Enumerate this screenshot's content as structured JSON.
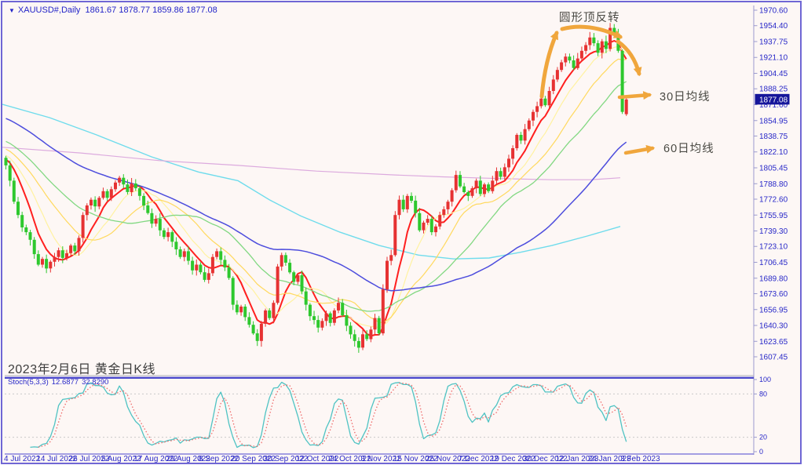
{
  "window": {
    "dropdown_icon": "▼",
    "title": "XAUUSD#,Daily",
    "title_ohlc": "1861.67 1878.77 1859.86 1877.08"
  },
  "main_chart": {
    "date_note": "2023年2月6日 黄金日K线",
    "annotations": {
      "rounded_top_label": "圆形顶反转",
      "ma30_label": "30日均线",
      "ma60_label": "60日均线",
      "arrow_color": "#f0a63c"
    },
    "current_price": "1877.08",
    "current_price_bg": "#15159a",
    "axis_text_color": "#2828c8",
    "price_labels": [
      "1970.60",
      "1954.40",
      "1937.75",
      "1921.10",
      "1904.45",
      "1888.25",
      "1871.60",
      "1854.95",
      "1838.75",
      "1822.10",
      "1805.45",
      "1788.80",
      "1772.60",
      "1755.95",
      "1739.30",
      "1723.10",
      "1706.45",
      "1689.80",
      "1673.60",
      "1656.95",
      "1640.30",
      "1623.65",
      "1607.45"
    ],
    "date_labels": [
      "4 Jul 2022",
      "14 Jul 2022",
      "26 Jul 2022",
      "5 Aug 2022",
      "17 Aug 2022",
      "29 Aug 2022",
      "8 Sep 2022",
      "20 Sep 2022",
      "30 Sep 2022",
      "12 Oct 2022",
      "24 Oct 2022",
      "3 Nov 2022",
      "15 Nov 2022",
      "25 Nov 2022",
      "7 Dec 2022",
      "19 Dec 2022",
      "30 Dec 2022",
      "12 Jan 2023",
      "24 Jan 2023",
      "3 Feb 2023"
    ]
  },
  "stoch_panel": {
    "indicator_label": "Stoch(5,3,3)",
    "k_value": "12.6877",
    "d_value": "32.8290",
    "level_labels": [
      "100",
      "80",
      "20",
      "0"
    ],
    "level_values": [
      100,
      80,
      20,
      0
    ]
  },
  "chart_data": {
    "type": "candlestick",
    "title": "XAUUSD# Daily K-line, 4 Jul 2022 - 6 Feb 2023",
    "x_labels": [
      "4 Jul 2022",
      "14 Jul 2022",
      "26 Jul 2022",
      "5 Aug 2022",
      "17 Aug 2022",
      "29 Aug 2022",
      "8 Sep 2022",
      "20 Sep 2022",
      "30 Sep 2022",
      "12 Oct 2022",
      "24 Oct 2022",
      "3 Nov 2022",
      "15 Nov 2022",
      "25 Nov 2022",
      "7 Dec 2022",
      "19 Dec 2022",
      "30 Dec 2022",
      "12 Jan 2023",
      "24 Jan 2023",
      "3 Feb 2023"
    ],
    "x_label_step_bars": 8,
    "ylim": [
      1600,
      1975
    ],
    "price_ticks": [
      1970.6,
      1954.4,
      1937.75,
      1921.1,
      1904.45,
      1888.25,
      1871.6,
      1854.95,
      1838.75,
      1822.1,
      1805.45,
      1788.8,
      1772.6,
      1755.95,
      1739.3,
      1723.1,
      1706.45,
      1689.8,
      1673.6,
      1656.95,
      1640.3,
      1623.65,
      1607.45
    ],
    "closes": [
      1808,
      1792,
      1770,
      1756,
      1743,
      1738,
      1730,
      1715,
      1704,
      1710,
      1700,
      1707,
      1712,
      1719,
      1711,
      1716,
      1724,
      1718,
      1732,
      1756,
      1766,
      1772,
      1765,
      1774,
      1781,
      1774,
      1783,
      1790,
      1795,
      1788,
      1780,
      1789,
      1784,
      1776,
      1766,
      1758,
      1747,
      1752,
      1740,
      1733,
      1738,
      1728,
      1720,
      1712,
      1718,
      1708,
      1698,
      1704,
      1696,
      1688,
      1695,
      1712,
      1718,
      1709,
      1701,
      1690,
      1662,
      1654,
      1660,
      1649,
      1641,
      1632,
      1624,
      1642,
      1656,
      1648,
      1664,
      1702,
      1714,
      1706,
      1696,
      1686,
      1693,
      1676,
      1662,
      1650,
      1646,
      1638,
      1645,
      1653,
      1643,
      1656,
      1664,
      1651,
      1640,
      1631,
      1624,
      1617,
      1631,
      1626,
      1636,
      1648,
      1632,
      1678,
      1708,
      1714,
      1756,
      1772,
      1762,
      1776,
      1771,
      1758,
      1740,
      1748,
      1752,
      1738,
      1744,
      1756,
      1762,
      1770,
      1782,
      1798,
      1786,
      1780,
      1776,
      1784,
      1792,
      1778,
      1788,
      1781,
      1792,
      1802,
      1796,
      1806,
      1815,
      1826,
      1840,
      1834,
      1846,
      1855,
      1864,
      1870,
      1878,
      1871,
      1886,
      1898,
      1908,
      1916,
      1922,
      1918,
      1910,
      1920,
      1928,
      1934,
      1942,
      1936,
      1926,
      1938,
      1930,
      1952,
      1946,
      1928,
      1864,
      1877.08
    ],
    "last_candle": {
      "open": 1861.67,
      "high": 1878.77,
      "low": 1859.86,
      "close": 1877.08
    },
    "up_color": "#e63232",
    "down_color": "#2ec82e",
    "moving_averages": [
      {
        "name": "fast-red",
        "period": 7,
        "color": "#ff1f1f",
        "width": 2
      },
      {
        "name": "ma-pale-yellow",
        "period": 12,
        "color": "#fff2a0",
        "width": 1.2
      },
      {
        "name": "ma-gold",
        "period": 20,
        "color": "#ffd95e",
        "width": 1.2
      },
      {
        "name": "ma30-green",
        "period": 30,
        "color": "#82d882",
        "width": 1.3
      },
      {
        "name": "ma60-blue",
        "period": 60,
        "color": "#4d4ddd",
        "width": 1.5
      }
    ],
    "prehistory": {
      "bars": 60,
      "from": 1906,
      "to": 1811.6
    },
    "slow_overlays": [
      {
        "name": "long-ma-cyan",
        "color": "#6fdcec",
        "width": 1.4,
        "points": [
          [
            0,
            1872
          ],
          [
            60,
            1858
          ],
          [
            120,
            1840
          ],
          [
            190,
            1817
          ],
          [
            250,
            1801
          ],
          [
            300,
            1792
          ],
          [
            340,
            1772
          ],
          [
            380,
            1755
          ],
          [
            430,
            1738
          ],
          [
            480,
            1724
          ],
          [
            530,
            1714
          ],
          [
            575,
            1710
          ],
          [
            620,
            1711
          ],
          [
            660,
            1717
          ],
          [
            700,
            1724
          ],
          [
            745,
            1734
          ],
          [
            787,
            1744
          ]
        ]
      },
      {
        "name": "long-ma-plum",
        "color": "#dcaade",
        "width": 1.2,
        "points": [
          [
            0,
            1827
          ],
          [
            100,
            1821
          ],
          [
            200,
            1813
          ],
          [
            300,
            1808
          ],
          [
            400,
            1802
          ],
          [
            500,
            1798
          ],
          [
            560,
            1796
          ],
          [
            640,
            1794
          ],
          [
            700,
            1793
          ],
          [
            750,
            1793
          ],
          [
            787,
            1795
          ]
        ]
      }
    ],
    "stoch": {
      "k_period": 5,
      "slowing": 3,
      "d_period": 3,
      "k_color": "#4fc3c3",
      "d_color": "#ef6a6a",
      "last_k": 12.6877,
      "last_d": 32.829,
      "levels": [
        80,
        20
      ]
    }
  }
}
